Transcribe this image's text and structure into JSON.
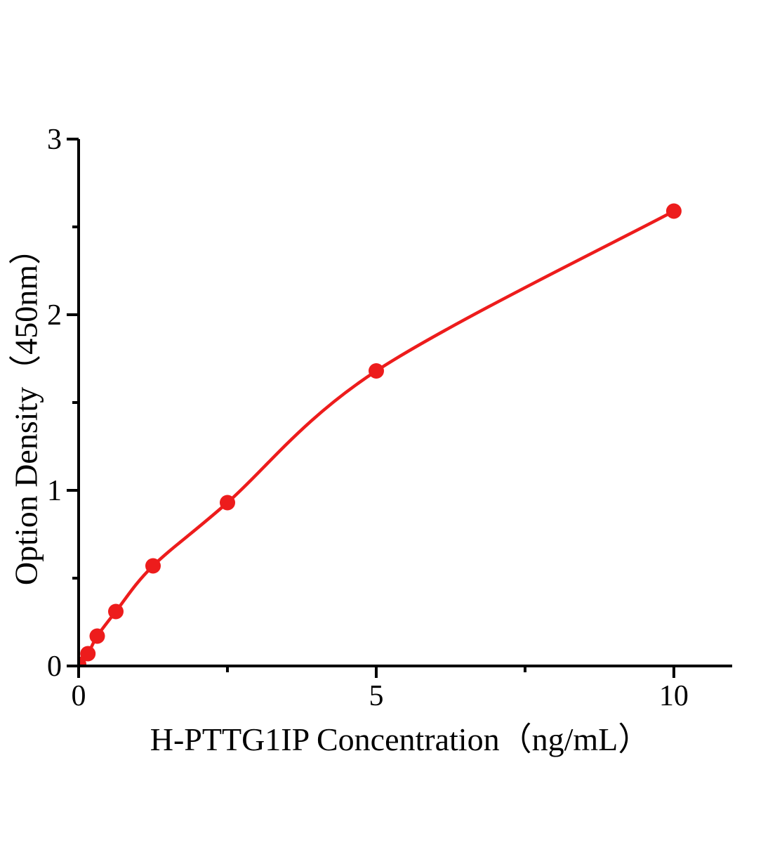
{
  "chart_data": {
    "type": "line",
    "title": "",
    "xlabel": "H-PTTG1IP Concentration（ng/mL）",
    "ylabel": "Option Density（450nm）",
    "x": [
      0,
      0.156,
      0.3125,
      0.625,
      1.25,
      2.5,
      5,
      10
    ],
    "y": [
      0.01,
      0.07,
      0.17,
      0.31,
      0.57,
      0.93,
      1.68,
      2.59
    ],
    "xlim": [
      0,
      10.98
    ],
    "ylim": [
      0,
      3
    ],
    "x_major_ticks": [
      0,
      5,
      10
    ],
    "x_tick_labels": [
      "0",
      "5",
      "10"
    ],
    "x_minor_ticks": [
      2.5,
      7.5
    ],
    "y_major_ticks": [
      0,
      1,
      2,
      3
    ],
    "y_tick_labels": [
      "0",
      "1",
      "2",
      "3"
    ],
    "y_minor_ticks": [
      0.5,
      1.5,
      2.5
    ],
    "series_color": "#ED1C1C",
    "axis_color": "#000000",
    "marker": "circle",
    "grid": false,
    "legend": null
  }
}
